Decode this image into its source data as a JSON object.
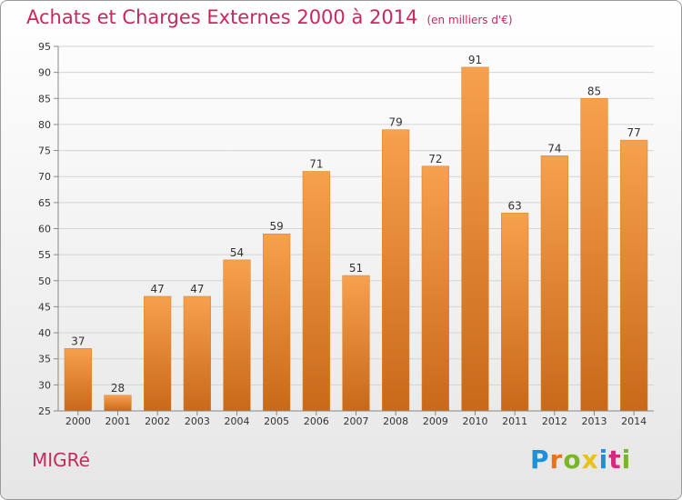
{
  "title": "Achats et Charges Externes 2000 à 2014",
  "subtitle": "(en milliers d'€)",
  "commune": "MIGRé",
  "logo": {
    "letters": [
      "P",
      "r",
      "o",
      "x",
      "i",
      "t",
      "i"
    ],
    "colors": [
      "#1e90d8",
      "#e8731c",
      "#7ab42a",
      "#e8c21c",
      "#1e90d8",
      "#d8287a",
      "#7ab42a"
    ]
  },
  "colors": {
    "bar": "#f28c28",
    "bar_light": "#f7a04d",
    "bar_dark": "#c8691a",
    "title": "#c8285a"
  },
  "chart_data": {
    "type": "bar",
    "categories": [
      "2000",
      "2001",
      "2002",
      "2003",
      "2004",
      "2005",
      "2006",
      "2007",
      "2008",
      "2009",
      "2010",
      "2011",
      "2012",
      "2013",
      "2014"
    ],
    "values": [
      37,
      28,
      47,
      47,
      54,
      59,
      71,
      51,
      79,
      72,
      91,
      63,
      74,
      85,
      77
    ],
    "ylim": [
      25,
      95
    ],
    "yticks": [
      25,
      30,
      35,
      40,
      45,
      50,
      55,
      60,
      65,
      70,
      75,
      80,
      85,
      90,
      95
    ],
    "grid": true,
    "legend": "none"
  }
}
